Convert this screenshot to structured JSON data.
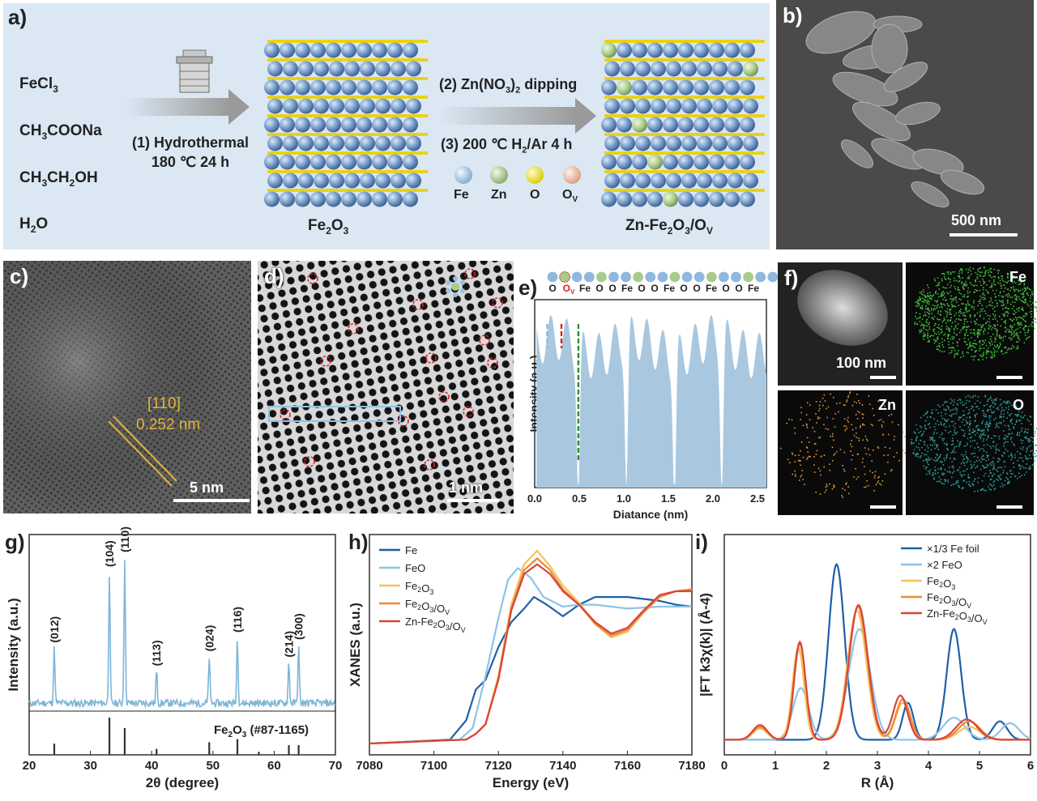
{
  "figure": {
    "panel_a": {
      "label": "a)",
      "reagents": [
        "FeCl3",
        "CH3COONa",
        "CH3CH2OH",
        "H2O"
      ],
      "step1": {
        "line1": "(1) Hydrothermal",
        "line2": "180 ℃   24 h"
      },
      "step2": "(2) Zn(NO3)2 dipping",
      "step3": "(3) 200 ℃ H2/Ar 4 h",
      "product1": "Fe2O3",
      "product2": "Zn-Fe2O3/OV",
      "legend": [
        {
          "label": "Fe",
          "color": "#9cc3e0"
        },
        {
          "label": "Zn",
          "color": "#a9cc8a"
        },
        {
          "label": "O",
          "color": "#ece41a"
        },
        {
          "label": "OV",
          "color": "#f0c0a8"
        }
      ]
    },
    "panel_b": {
      "label": "b)",
      "scale": "500 nm"
    },
    "panel_c": {
      "label": "c)",
      "plane": "[110]",
      "spacing": "0.252 nm",
      "scale": "5 nm"
    },
    "panel_d": {
      "label": "d)",
      "scale": "1 nm"
    },
    "panel_e": {
      "label": "e)",
      "atom_sequence": [
        "O",
        "OV",
        "Fe",
        "O",
        "O",
        "Fe",
        "O",
        "O",
        "Fe",
        "O",
        "O",
        "Fe",
        "O",
        "O",
        "Fe"
      ]
    },
    "panel_f": {
      "label": "f)",
      "scale": "100 nm",
      "maps": [
        "Fe",
        "Zn",
        "O"
      ]
    },
    "panel_g": {
      "label": "g)",
      "reference": "Fe2O3 (#87-1165)"
    },
    "panel_h": {
      "label": "h)"
    },
    "panel_i": {
      "label": "i)"
    }
  },
  "chart_data": [
    {
      "id": "e",
      "type": "area",
      "xlabel": "Diatance (nm)",
      "ylabel": "Intensity (a.u.)",
      "xlim": [
        0,
        2.6
      ],
      "xticks": [
        0.0,
        0.5,
        1.0,
        1.5,
        2.0,
        2.5
      ],
      "xtick_labels": [
        "0.0",
        "0.5",
        "1.0",
        "1.5",
        "2.0",
        "2.5"
      ],
      "minima_x": [
        0.49,
        1.03,
        1.57,
        2.1
      ],
      "markers_x": [
        {
          "x": 0.14,
          "color": "#8fb8d8"
        },
        {
          "x": 0.3,
          "color": "#e02020"
        },
        {
          "x": 0.49,
          "color": "#2e8b2e"
        }
      ],
      "color": "#a9c8e0"
    },
    {
      "id": "g",
      "type": "line",
      "xlabel": "2θ (degree)",
      "ylabel": "Intensity (a.u.)",
      "xlim": [
        20,
        70
      ],
      "xticks": [
        20,
        30,
        40,
        50,
        60,
        70
      ],
      "xtick_labels": [
        "20",
        "30",
        "40",
        "50",
        "60",
        "70"
      ],
      "peaks": [
        {
          "x": 24.1,
          "h": 0.38,
          "label": "(012)"
        },
        {
          "x": 33.1,
          "h": 0.9,
          "label": "(104)"
        },
        {
          "x": 35.6,
          "h": 1.0,
          "label": "(110)"
        },
        {
          "x": 40.8,
          "h": 0.22,
          "label": "(113)"
        },
        {
          "x": 49.4,
          "h": 0.32,
          "label": "(024)"
        },
        {
          "x": 54.0,
          "h": 0.45,
          "label": "(116)"
        },
        {
          "x": 62.4,
          "h": 0.28,
          "label": "(214)"
        },
        {
          "x": 64.0,
          "h": 0.4,
          "label": "(300)"
        }
      ],
      "reference_sticks": [
        {
          "x": 24.1,
          "h": 0.3
        },
        {
          "x": 33.1,
          "h": 1.0
        },
        {
          "x": 35.6,
          "h": 0.72
        },
        {
          "x": 40.8,
          "h": 0.16
        },
        {
          "x": 49.4,
          "h": 0.34
        },
        {
          "x": 54.0,
          "h": 0.42
        },
        {
          "x": 57.5,
          "h": 0.08
        },
        {
          "x": 62.4,
          "h": 0.26
        },
        {
          "x": 64.0,
          "h": 0.26
        }
      ],
      "color": "#7eb5d8"
    },
    {
      "id": "h",
      "type": "line",
      "xlabel": "Energy (eV)",
      "ylabel": "XANES (a.u.)",
      "xlim": [
        7080,
        7180
      ],
      "xticks": [
        7080,
        7100,
        7120,
        7140,
        7160,
        7180
      ],
      "xtick_labels": [
        "7080",
        "7100",
        "7120",
        "7140",
        "7160",
        "7180"
      ],
      "series": [
        {
          "name": "Fe",
          "color": "#1f5fa8",
          "x": [
            7080,
            7105,
            7110,
            7113,
            7116,
            7120,
            7124,
            7128,
            7131,
            7135,
            7140,
            7145,
            7150,
            7160,
            7170,
            7175,
            7180
          ],
          "y": [
            0.0,
            0.02,
            0.12,
            0.28,
            0.33,
            0.5,
            0.63,
            0.7,
            0.76,
            0.72,
            0.66,
            0.72,
            0.76,
            0.76,
            0.74,
            0.72,
            0.71
          ]
        },
        {
          "name": "FeO",
          "color": "#8ec3e6",
          "x": [
            7080,
            7108,
            7112,
            7116,
            7120,
            7123,
            7126,
            7130,
            7134,
            7140,
            7145,
            7150,
            7160,
            7170,
            7180
          ],
          "y": [
            0.0,
            0.02,
            0.08,
            0.35,
            0.65,
            0.85,
            0.91,
            0.86,
            0.76,
            0.71,
            0.72,
            0.72,
            0.7,
            0.71,
            0.71
          ]
        },
        {
          "name": "Fe2O3",
          "color": "#f6c35a",
          "x": [
            7080,
            7110,
            7113,
            7116,
            7120,
            7124,
            7128,
            7132,
            7136,
            7140,
            7145,
            7150,
            7155,
            7160,
            7165,
            7170,
            7175,
            7180
          ],
          "y": [
            0.0,
            0.02,
            0.05,
            0.1,
            0.35,
            0.72,
            0.93,
            1.0,
            0.92,
            0.82,
            0.73,
            0.62,
            0.55,
            0.58,
            0.68,
            0.76,
            0.79,
            0.8
          ]
        },
        {
          "name": "Fe2O3/OV",
          "color": "#e88b3a",
          "x": [
            7080,
            7110,
            7113,
            7116,
            7120,
            7124,
            7128,
            7132,
            7136,
            7140,
            7145,
            7150,
            7155,
            7160,
            7165,
            7170,
            7175,
            7180
          ],
          "y": [
            0.0,
            0.02,
            0.05,
            0.1,
            0.34,
            0.7,
            0.9,
            0.96,
            0.9,
            0.8,
            0.72,
            0.62,
            0.56,
            0.59,
            0.68,
            0.76,
            0.79,
            0.8
          ]
        },
        {
          "name": "Zn-Fe2O3/OV",
          "color": "#d9453a",
          "x": [
            7080,
            7110,
            7113,
            7116,
            7120,
            7124,
            7128,
            7132,
            7136,
            7140,
            7145,
            7150,
            7155,
            7160,
            7165,
            7170,
            7175,
            7180
          ],
          "y": [
            0.0,
            0.02,
            0.05,
            0.1,
            0.33,
            0.69,
            0.88,
            0.93,
            0.88,
            0.79,
            0.72,
            0.63,
            0.57,
            0.6,
            0.69,
            0.77,
            0.79,
            0.79
          ]
        }
      ],
      "legend": [
        {
          "label": "Fe",
          "color": "#1f5fa8"
        },
        {
          "label": "FeO",
          "color": "#8ec3e6"
        },
        {
          "label": "Fe2O3",
          "color": "#f6c35a"
        },
        {
          "label": "Fe2O3/OV",
          "color": "#e88b3a"
        },
        {
          "label": "Zn-Fe2O3/OV",
          "color": "#d9453a"
        }
      ]
    },
    {
      "id": "i",
      "type": "line",
      "xlabel": "R (Å)",
      "ylabel": "|FT k3χ(k)| (Å-4)",
      "xlim": [
        0,
        6
      ],
      "xticks": [
        0,
        1,
        2,
        3,
        4,
        5,
        6
      ],
      "xtick_labels": [
        "0",
        "1",
        "2",
        "3",
        "4",
        "5",
        "6"
      ],
      "series": [
        {
          "name": "×1/3 Fe foil",
          "color": "#1f5fa8",
          "peaks": [
            [
              2.2,
              0.95,
              0.22
            ],
            [
              3.6,
              0.2,
              0.15
            ],
            [
              4.5,
              0.6,
              0.2
            ],
            [
              5.4,
              0.1,
              0.2
            ]
          ]
        },
        {
          "name": "×2  FeO",
          "color": "#8ec3e6",
          "peaks": [
            [
              1.5,
              0.28,
              0.22
            ],
            [
              2.65,
              0.6,
              0.3
            ],
            [
              4.5,
              0.12,
              0.3
            ],
            [
              5.6,
              0.09,
              0.25
            ]
          ]
        },
        {
          "name": "Fe2O3",
          "color": "#f6c35a",
          "peaks": [
            [
              0.7,
              0.06,
              0.2
            ],
            [
              1.45,
              0.5,
              0.16
            ],
            [
              2.6,
              0.7,
              0.26
            ],
            [
              3.5,
              0.2,
              0.2
            ],
            [
              4.8,
              0.07,
              0.3
            ]
          ]
        },
        {
          "name": "Fe2O3/OV",
          "color": "#e88b3a",
          "peaks": [
            [
              0.7,
              0.07,
              0.2
            ],
            [
              1.48,
              0.52,
              0.16
            ],
            [
              2.62,
              0.72,
              0.26
            ],
            [
              3.5,
              0.22,
              0.2
            ],
            [
              4.8,
              0.1,
              0.3
            ]
          ]
        },
        {
          "name": "Zn-Fe2O3/OV",
          "color": "#d9453a",
          "peaks": [
            [
              0.7,
              0.08,
              0.2
            ],
            [
              1.48,
              0.53,
              0.16
            ],
            [
              2.63,
              0.73,
              0.26
            ],
            [
              3.45,
              0.24,
              0.2
            ],
            [
              4.75,
              0.11,
              0.3
            ]
          ]
        }
      ],
      "legend": [
        {
          "label": "×1/3 Fe foil",
          "color": "#1f5fa8"
        },
        {
          "label": "×2  FeO",
          "color": "#8ec3e6"
        },
        {
          "label": "Fe2O3",
          "color": "#f6c35a"
        },
        {
          "label": "Fe2O3/OV",
          "color": "#e88b3a"
        },
        {
          "label": "Zn-Fe2O3/OV",
          "color": "#d9453a"
        }
      ]
    }
  ]
}
